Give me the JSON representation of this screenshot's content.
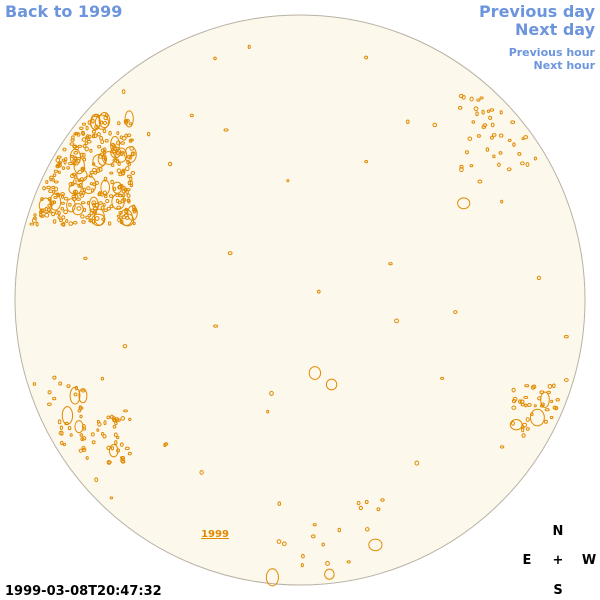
{
  "nav": {
    "back": "Back to 1999",
    "previous_day": "Previous day",
    "next_day": "Next day",
    "previous_hour": "Previous hour",
    "next_hour": "Next hour"
  },
  "disc": {
    "year_link": "1999"
  },
  "compass": {
    "north": "N",
    "east": "E",
    "center": "+",
    "west": "W",
    "south": "S"
  },
  "timestamp": "1999-03-08T20:47:32"
}
